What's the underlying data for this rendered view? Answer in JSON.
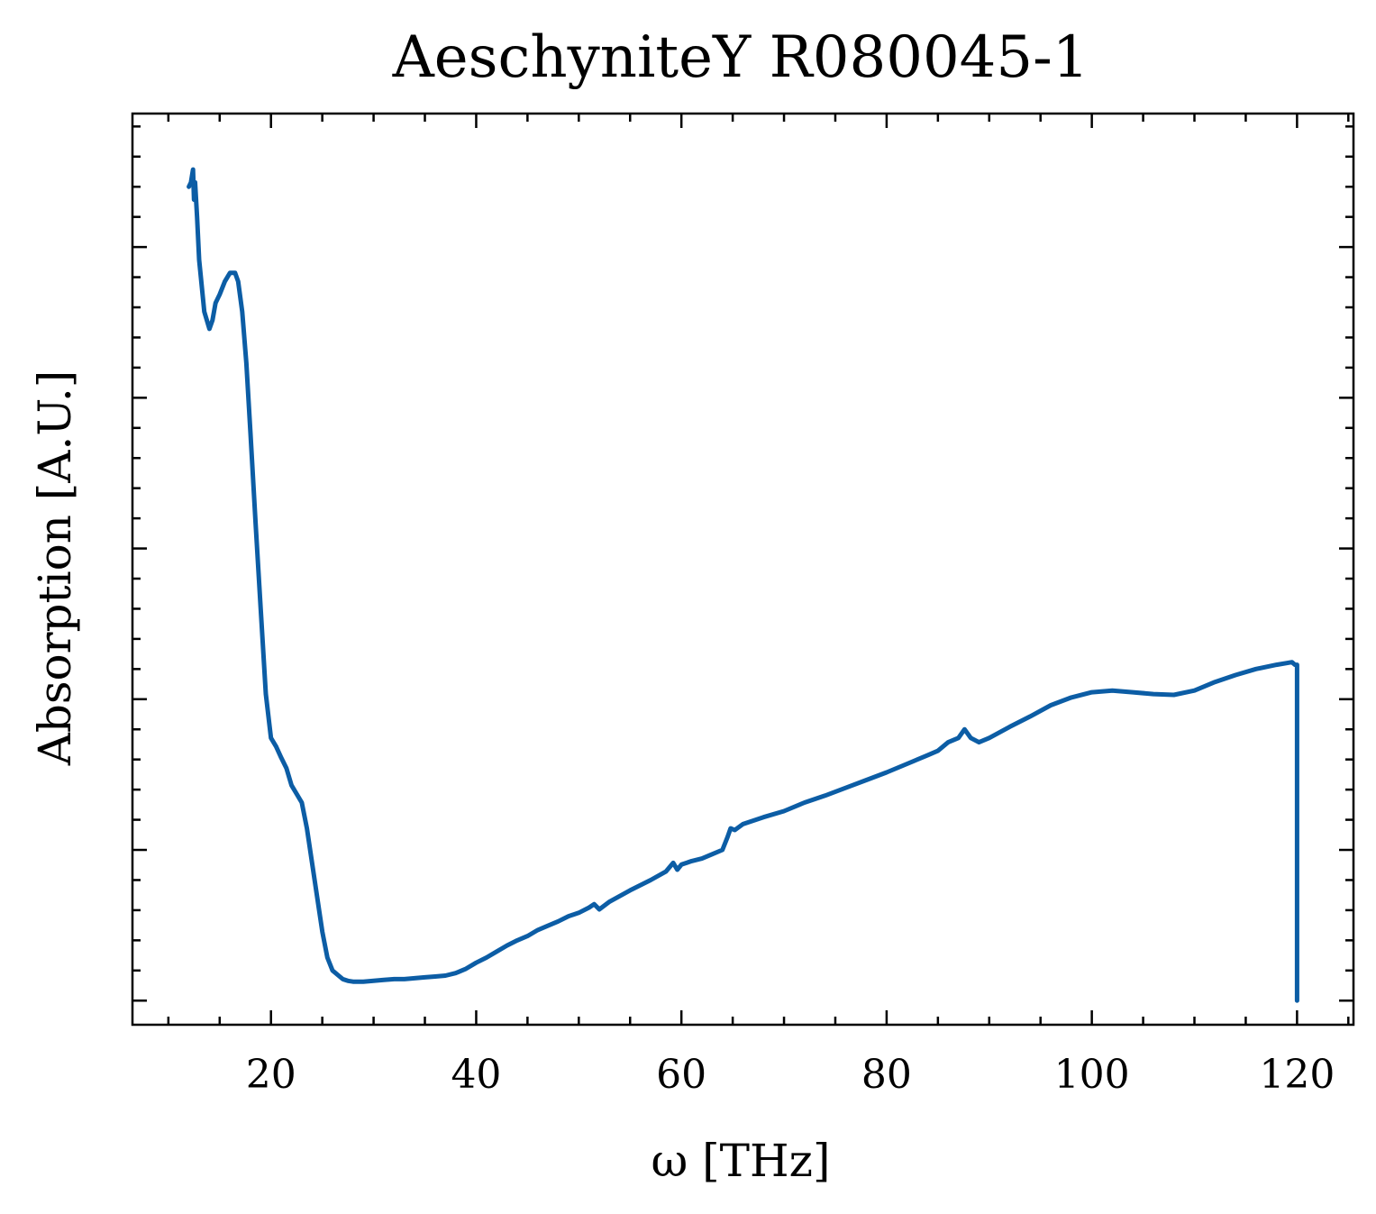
{
  "chart_data": {
    "type": "line",
    "title": "AeschyniteY R080045-1",
    "xlabel": "ω [THz]",
    "ylabel": "Absorption [A.U.]",
    "xlim": [
      6.5,
      125.5
    ],
    "ylim": [
      -0.028,
      1.03
    ],
    "x_ticks": [
      20,
      40,
      60,
      80,
      100,
      120
    ],
    "y_major_ticks": [
      0.0,
      0.175,
      0.35,
      0.525,
      0.7,
      0.875
    ],
    "y_minor_step": 0.035,
    "x_minor_step": 5,
    "show_y_tick_labels": false,
    "grid": false,
    "legend": "none",
    "line_color": "#0c5da5",
    "series": [
      {
        "x": [
          12.0,
          12.2,
          12.4,
          12.5,
          12.6,
          12.8,
          13.0,
          13.5,
          14.0,
          14.3,
          14.6,
          15.0,
          15.5,
          16.0,
          16.5,
          16.8,
          17.2,
          17.6,
          18.0,
          18.5,
          19.0,
          19.5,
          20.0,
          20.5,
          21.0,
          21.5,
          22.0,
          22.5,
          23.0,
          23.5,
          24.0,
          24.5,
          25.0,
          25.5,
          26.0,
          26.5,
          27.0,
          27.5,
          28.0,
          28.5,
          29.0,
          30.0,
          31.0,
          32.0,
          33.0,
          34.0,
          35.0,
          36.0,
          37.0,
          38.0,
          39.0,
          40.0,
          41.0,
          42.0,
          43.0,
          44.0,
          45.0,
          46.0,
          47.0,
          48.0,
          49.0,
          50.0,
          51.0,
          51.5,
          52.0,
          53.0,
          55.0,
          57.0,
          58.5,
          59.2,
          59.6,
          60.0,
          61.0,
          62.0,
          63.0,
          64.0,
          64.5,
          64.8,
          65.2,
          66.0,
          68.0,
          70.0,
          72.0,
          74.0,
          76.0,
          78.0,
          80.0,
          82.0,
          84.0,
          85.0,
          86.0,
          87.0,
          87.6,
          88.2,
          89.0,
          90.0,
          92.0,
          94.0,
          96.0,
          98.0,
          100.0,
          102.0,
          104.0,
          106.0,
          108.0,
          110.0,
          112.0,
          114.0,
          116.0,
          118.0,
          119.0,
          119.5,
          119.8,
          120.0,
          120.0,
          120.0
        ],
        "y": [
          0.945,
          0.95,
          0.965,
          0.93,
          0.95,
          0.91,
          0.86,
          0.8,
          0.78,
          0.79,
          0.81,
          0.82,
          0.835,
          0.845,
          0.845,
          0.835,
          0.8,
          0.74,
          0.66,
          0.555,
          0.455,
          0.356,
          0.305,
          0.295,
          0.282,
          0.27,
          0.25,
          0.24,
          0.23,
          0.2,
          0.16,
          0.12,
          0.08,
          0.05,
          0.035,
          0.03,
          0.025,
          0.023,
          0.022,
          0.022,
          0.022,
          0.023,
          0.024,
          0.025,
          0.025,
          0.026,
          0.027,
          0.028,
          0.029,
          0.032,
          0.037,
          0.044,
          0.05,
          0.057,
          0.064,
          0.07,
          0.075,
          0.082,
          0.087,
          0.092,
          0.098,
          0.102,
          0.108,
          0.112,
          0.106,
          0.115,
          0.128,
          0.14,
          0.15,
          0.16,
          0.152,
          0.158,
          0.162,
          0.165,
          0.17,
          0.175,
          0.19,
          0.2,
          0.198,
          0.205,
          0.213,
          0.22,
          0.23,
          0.238,
          0.247,
          0.256,
          0.265,
          0.275,
          0.285,
          0.29,
          0.3,
          0.305,
          0.315,
          0.305,
          0.3,
          0.305,
          0.318,
          0.33,
          0.343,
          0.352,
          0.358,
          0.36,
          0.358,
          0.356,
          0.355,
          0.36,
          0.37,
          0.378,
          0.385,
          0.39,
          0.392,
          0.393,
          0.39,
          0.39,
          0.2,
          0.0
        ]
      }
    ]
  }
}
